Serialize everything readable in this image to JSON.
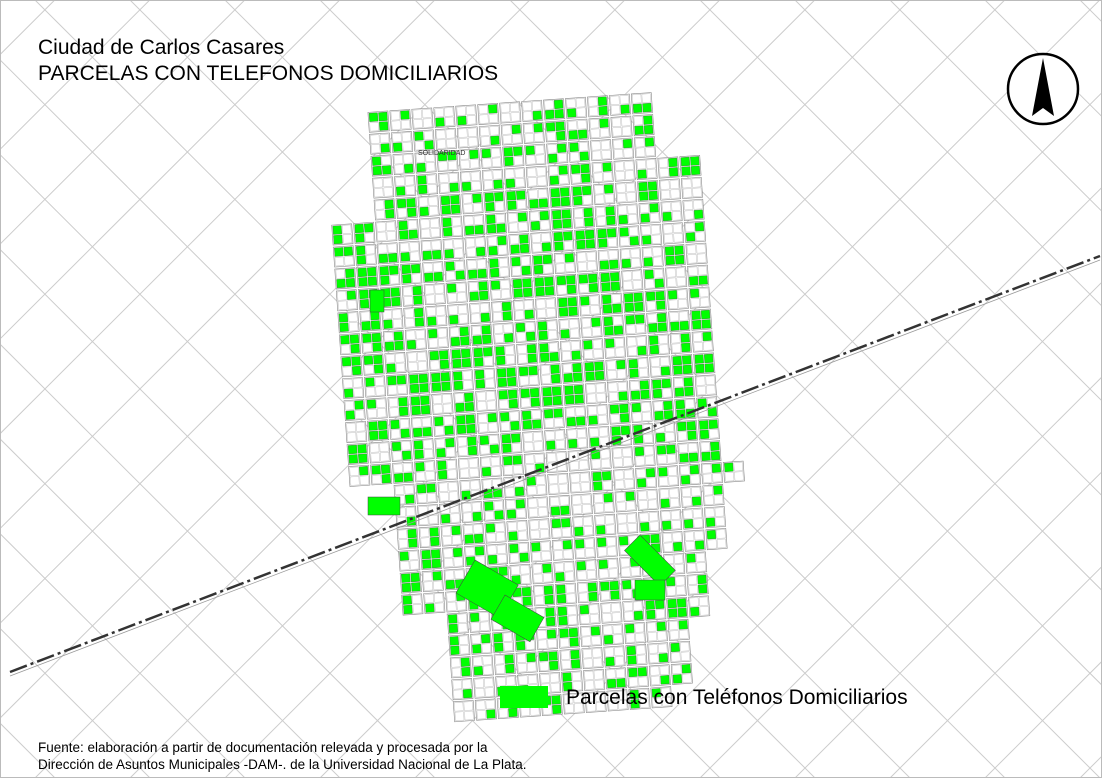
{
  "title": [
    "Ciudad de Carlos Casares",
    "PARCELAS CON TELEFONOS DOMICILIARIOS"
  ],
  "map_labels": [
    "SOLIDARIDAD"
  ],
  "legend": {
    "label": "Parcelas con Teléfonos Domiciliarios",
    "color": "#00ff00"
  },
  "source": [
    "Fuente: elaboración a partir de documentación  relevada y procesada por la",
    "Dirección de Asuntos Municipales -DAM-. de la Universidad Nacional de La Plata."
  ]
}
